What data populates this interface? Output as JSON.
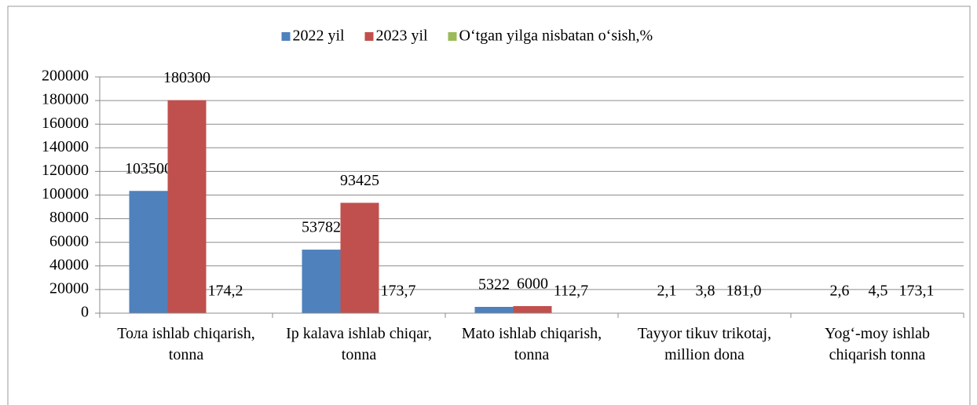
{
  "chart_data": {
    "type": "bar",
    "categories": [
      "Тола ishlab chiqarish, tonna",
      "Ip kalava ishlab chiqar, tonna",
      "Mato ishlab chiqarish, tonna",
      "Tayyor tikuv trikotaj, million dona",
      "Yog‘-moy ishlab chiqarish tonna"
    ],
    "series": [
      {
        "name": "2022 yil",
        "color": "#4f81bd",
        "values": [
          103500,
          53782,
          5322,
          2.1,
          2.6
        ],
        "value_labels": [
          "103500",
          "53782",
          "5322",
          "2,1",
          "2,6"
        ]
      },
      {
        "name": "2023 yil",
        "color": "#c0504d",
        "values": [
          180300,
          93425,
          6000,
          3.8,
          4.5
        ],
        "value_labels": [
          "180300",
          "93425",
          "6000",
          "3,8",
          "4,5"
        ]
      },
      {
        "name": "O‘tgan yilga nisbatan o‘sish,%",
        "color": "#9bbb59",
        "values": [
          174.2,
          173.7,
          112.7,
          181.0,
          173.1
        ],
        "value_labels": [
          "174,2",
          "173,7",
          "112,7",
          "181,0",
          "173,1"
        ]
      }
    ],
    "ylim": [
      0,
      200000
    ],
    "yticks": [
      0,
      20000,
      40000,
      60000,
      80000,
      100000,
      120000,
      140000,
      160000,
      180000,
      200000
    ],
    "grid": true,
    "legend": "top"
  }
}
